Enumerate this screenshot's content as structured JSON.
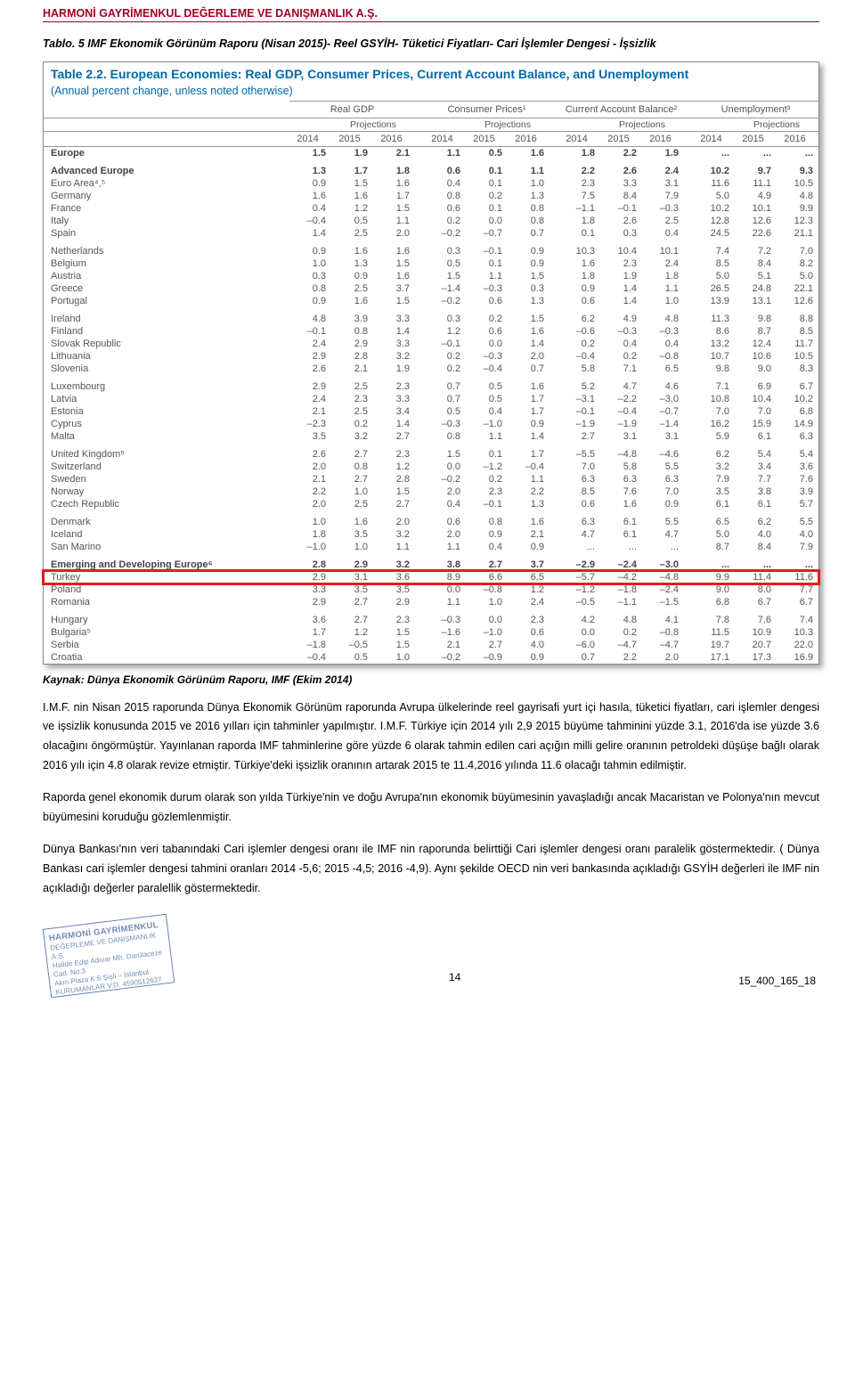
{
  "company_header": "HARMONİ GAYRİMENKUL DEĞERLEME VE DANIŞMANLIK A.Ş.",
  "caption": "Tablo. 5 IMF Ekonomik Görünüm Raporu (Nisan 2015)- Reel GSYİH- Tüketici Fiyatları- Cari İşlemler Dengesi - İşsizlik",
  "table": {
    "title": "Table 2.2. European Economies: Real GDP, Consumer Prices, Current Account Balance, and Unemployment",
    "subtitle": "(Annual percent change, unless noted otherwise)",
    "groups": [
      "Real GDP",
      "Consumer Prices¹",
      "Current Account Balance²",
      "Unemployment³"
    ],
    "proj_label": "Projections",
    "years": [
      "2014",
      "2015",
      "2016",
      "2014",
      "2015",
      "2016",
      "2014",
      "2015",
      "2016",
      "2014",
      "2015",
      "2016"
    ],
    "rows": [
      {
        "name": "Europe",
        "bold": true,
        "v": [
          "1.5",
          "1.9",
          "2.1",
          "1.1",
          "0.5",
          "1.6",
          "1.8",
          "2.2",
          "1.9",
          "...",
          "...",
          "..."
        ]
      },
      {
        "spacer": true
      },
      {
        "name": "Advanced Europe",
        "bold": true,
        "v": [
          "1.3",
          "1.7",
          "1.8",
          "0.6",
          "0.1",
          "1.1",
          "2.2",
          "2.6",
          "2.4",
          "10.2",
          "9.7",
          "9.3"
        ]
      },
      {
        "name": "Euro Area⁴,⁵",
        "v": [
          "0.9",
          "1.5",
          "1.6",
          "0.4",
          "0.1",
          "1.0",
          "2.3",
          "3.3",
          "3.1",
          "11.6",
          "11.1",
          "10.5"
        ]
      },
      {
        "name": "Germany",
        "v": [
          "1.6",
          "1.6",
          "1.7",
          "0.8",
          "0.2",
          "1.3",
          "7.5",
          "8.4",
          "7.9",
          "5.0",
          "4.9",
          "4.8"
        ]
      },
      {
        "name": "France",
        "v": [
          "0.4",
          "1.2",
          "1.5",
          "0.6",
          "0.1",
          "0.8",
          "–1.1",
          "–0.1",
          "–0.3",
          "10.2",
          "10.1",
          "9.9"
        ]
      },
      {
        "name": "Italy",
        "v": [
          "–0.4",
          "0.5",
          "1.1",
          "0.2",
          "0.0",
          "0.8",
          "1.8",
          "2.6",
          "2.5",
          "12.8",
          "12.6",
          "12.3"
        ]
      },
      {
        "name": "Spain",
        "v": [
          "1.4",
          "2.5",
          "2.0",
          "–0.2",
          "–0.7",
          "0.7",
          "0.1",
          "0.3",
          "0.4",
          "24.5",
          "22.6",
          "21.1"
        ]
      },
      {
        "spacer": true
      },
      {
        "name": "Netherlands",
        "v": [
          "0.9",
          "1.6",
          "1.6",
          "0.3",
          "–0.1",
          "0.9",
          "10.3",
          "10.4",
          "10.1",
          "7.4",
          "7.2",
          "7.0"
        ]
      },
      {
        "name": "Belgium",
        "v": [
          "1.0",
          "1.3",
          "1.5",
          "0.5",
          "0.1",
          "0.9",
          "1.6",
          "2.3",
          "2.4",
          "8.5",
          "8.4",
          "8.2"
        ]
      },
      {
        "name": "Austria",
        "v": [
          "0.3",
          "0.9",
          "1.6",
          "1.5",
          "1.1",
          "1.5",
          "1.8",
          "1.9",
          "1.8",
          "5.0",
          "5.1",
          "5.0"
        ]
      },
      {
        "name": "Greece",
        "v": [
          "0.8",
          "2.5",
          "3.7",
          "–1.4",
          "–0.3",
          "0.3",
          "0.9",
          "1.4",
          "1.1",
          "26.5",
          "24.8",
          "22.1"
        ]
      },
      {
        "name": "Portugal",
        "v": [
          "0.9",
          "1.6",
          "1.5",
          "–0.2",
          "0.6",
          "1.3",
          "0.6",
          "1.4",
          "1.0",
          "13.9",
          "13.1",
          "12.6"
        ]
      },
      {
        "spacer": true
      },
      {
        "name": "Ireland",
        "v": [
          "4.8",
          "3.9",
          "3.3",
          "0.3",
          "0.2",
          "1.5",
          "6.2",
          "4.9",
          "4.8",
          "11.3",
          "9.8",
          "8.8"
        ]
      },
      {
        "name": "Finland",
        "v": [
          "–0.1",
          "0.8",
          "1.4",
          "1.2",
          "0.6",
          "1.6",
          "–0.6",
          "–0.3",
          "–0.3",
          "8.6",
          "8.7",
          "8.5"
        ]
      },
      {
        "name": "Slovak Republic",
        "v": [
          "2.4",
          "2.9",
          "3.3",
          "–0.1",
          "0.0",
          "1.4",
          "0.2",
          "0.4",
          "0.4",
          "13.2",
          "12.4",
          "11.7"
        ]
      },
      {
        "name": "Lithuania",
        "v": [
          "2.9",
          "2.8",
          "3.2",
          "0.2",
          "–0.3",
          "2.0",
          "–0.4",
          "0.2",
          "–0.8",
          "10.7",
          "10.6",
          "10.5"
        ]
      },
      {
        "name": "Slovenia",
        "v": [
          "2.6",
          "2.1",
          "1.9",
          "0.2",
          "–0.4",
          "0.7",
          "5.8",
          "7.1",
          "6.5",
          "9.8",
          "9.0",
          "8.3"
        ]
      },
      {
        "spacer": true
      },
      {
        "name": "Luxembourg",
        "v": [
          "2.9",
          "2.5",
          "2.3",
          "0.7",
          "0.5",
          "1.6",
          "5.2",
          "4.7",
          "4.6",
          "7.1",
          "6.9",
          "6.7"
        ]
      },
      {
        "name": "Latvia",
        "v": [
          "2.4",
          "2.3",
          "3.3",
          "0.7",
          "0.5",
          "1.7",
          "–3.1",
          "–2.2",
          "–3.0",
          "10.8",
          "10.4",
          "10.2"
        ]
      },
      {
        "name": "Estonia",
        "v": [
          "2.1",
          "2.5",
          "3.4",
          "0.5",
          "0.4",
          "1.7",
          "–0.1",
          "–0.4",
          "–0.7",
          "7.0",
          "7.0",
          "6.8"
        ]
      },
      {
        "name": "Cyprus",
        "v": [
          "–2.3",
          "0.2",
          "1.4",
          "–0.3",
          "–1.0",
          "0.9",
          "–1.9",
          "–1.9",
          "–1.4",
          "16.2",
          "15.9",
          "14.9"
        ]
      },
      {
        "name": "Malta",
        "v": [
          "3.5",
          "3.2",
          "2.7",
          "0.8",
          "1.1",
          "1.4",
          "2.7",
          "3.1",
          "3.1",
          "5.9",
          "6.1",
          "6.3"
        ]
      },
      {
        "spacer": true
      },
      {
        "name": "United Kingdom⁵",
        "v": [
          "2.6",
          "2.7",
          "2.3",
          "1.5",
          "0.1",
          "1.7",
          "–5.5",
          "–4.8",
          "–4.6",
          "6.2",
          "5.4",
          "5.4"
        ]
      },
      {
        "name": "Switzerland",
        "v": [
          "2.0",
          "0.8",
          "1.2",
          "0.0",
          "–1.2",
          "–0.4",
          "7.0",
          "5.8",
          "5.5",
          "3.2",
          "3.4",
          "3.6"
        ]
      },
      {
        "name": "Sweden",
        "v": [
          "2.1",
          "2.7",
          "2.8",
          "–0.2",
          "0.2",
          "1.1",
          "6.3",
          "6.3",
          "6.3",
          "7.9",
          "7.7",
          "7.6"
        ]
      },
      {
        "name": "Norway",
        "v": [
          "2.2",
          "1.0",
          "1.5",
          "2.0",
          "2.3",
          "2.2",
          "8.5",
          "7.6",
          "7.0",
          "3.5",
          "3.8",
          "3.9"
        ]
      },
      {
        "name": "Czech Republic",
        "v": [
          "2.0",
          "2.5",
          "2.7",
          "0.4",
          "–0.1",
          "1.3",
          "0.6",
          "1.6",
          "0.9",
          "6.1",
          "6.1",
          "5.7"
        ]
      },
      {
        "spacer": true
      },
      {
        "name": "Denmark",
        "v": [
          "1.0",
          "1.6",
          "2.0",
          "0.6",
          "0.8",
          "1.6",
          "6.3",
          "6.1",
          "5.5",
          "6.5",
          "6.2",
          "5.5"
        ]
      },
      {
        "name": "Iceland",
        "v": [
          "1.8",
          "3.5",
          "3.2",
          "2.0",
          "0.9",
          "2.1",
          "4.7",
          "6.1",
          "4.7",
          "5.0",
          "4.0",
          "4.0"
        ]
      },
      {
        "name": "San Marino",
        "v": [
          "–1.0",
          "1.0",
          "1.1",
          "1.1",
          "0.4",
          "0.9",
          "...",
          "...",
          "...",
          "8.7",
          "8.4",
          "7.9"
        ]
      },
      {
        "spacer": true
      },
      {
        "name": "Emerging and Developing Europe⁶",
        "bold": true,
        "v": [
          "2.8",
          "2.9",
          "3.2",
          "3.8",
          "2.7",
          "3.7",
          "–2.9",
          "–2.4",
          "–3.0",
          "...",
          "...",
          "..."
        ]
      },
      {
        "name": "Turkey",
        "highlight": true,
        "v": [
          "2.9",
          "3.1",
          "3.6",
          "8.9",
          "6.6",
          "6.5",
          "–5.7",
          "–4.2",
          "–4.8",
          "9.9",
          "11.4",
          "11.6"
        ]
      },
      {
        "name": "Poland",
        "v": [
          "3.3",
          "3.5",
          "3.5",
          "0.0",
          "–0.8",
          "1.2",
          "–1.2",
          "–1.8",
          "–2.4",
          "9.0",
          "8.0",
          "7.7"
        ]
      },
      {
        "name": "Romania",
        "v": [
          "2.9",
          "2.7",
          "2.9",
          "1.1",
          "1.0",
          "2.4",
          "–0.5",
          "–1.1",
          "–1.5",
          "6.8",
          "6.7",
          "6.7"
        ]
      },
      {
        "spacer": true
      },
      {
        "name": "Hungary",
        "v": [
          "3.6",
          "2.7",
          "2.3",
          "–0.3",
          "0.0",
          "2.3",
          "4.2",
          "4.8",
          "4.1",
          "7.8",
          "7.6",
          "7.4"
        ]
      },
      {
        "name": "Bulgaria⁵",
        "v": [
          "1.7",
          "1.2",
          "1.5",
          "–1.6",
          "–1.0",
          "0.6",
          "0.0",
          "0.2",
          "–0.8",
          "11.5",
          "10.9",
          "10.3"
        ]
      },
      {
        "name": "Serbia",
        "v": [
          "–1.8",
          "–0.5",
          "1.5",
          "2.1",
          "2.7",
          "4.0",
          "–6.0",
          "–4.7",
          "–4.7",
          "19.7",
          "20.7",
          "22.0"
        ]
      },
      {
        "name": "Croatia",
        "v": [
          "–0.4",
          "0.5",
          "1.0",
          "–0.2",
          "–0.9",
          "0.9",
          "0.7",
          "2.2",
          "2.0",
          "17.1",
          "17.3",
          "16.9"
        ]
      }
    ]
  },
  "source": "Kaynak: Dünya Ekonomik Görünüm Raporu, IMF (Ekim 2014)",
  "para1": "I.M.F. nin Nisan 2015 raporunda Dünya Ekonomik Görünüm raporunda Avrupa ülkelerinde reel gayrisafi yurt içi hasıla, tüketici fiyatları, cari işlemler dengesi ve işsizlik konusunda 2015 ve 2016 yılları için tahminler yapılmıştır. I.M.F. Türkiye için 2014 yılı 2,9 2015 büyüme tahminini yüzde 3.1, 2016'da ise yüzde 3.6 olacağını öngörmüştür. Yayınlanan raporda IMF tahminlerine göre yüzde 6 olarak tahmin edilen cari açığın milli gelire oranının petroldeki düşüşe bağlı olarak 2016 yılı için 4.8 olarak revize etmiştir. Türkiye'deki işsizlik oranının artarak 2015 te 11.4,2016 yılında 11.6 olacağı tahmin edilmiştir.",
  "para2": "Raporda genel ekonomik durum olarak son yılda Türkiye'nin ve doğu Avrupa'nın ekonomik büyümesinin yavaşladığı ancak Macaristan ve Polonya'nın mevcut büyümesini koruduğu gözlemlenmiştir.",
  "para3": "Dünya Bankası'nın veri tabanındaki Cari işlemler dengesi oranı ile IMF nin raporunda belirttiği Cari işlemler dengesi oranı paralelik göstermektedir. ( Dünya Bankası cari işlemler dengesi tahmini oranları 2014 -5,6; 2015 -4,5; 2016 -4,9). Aynı şekilde OECD nin veri bankasında açıkladığı GSYİH değerleri ile IMF nin açıkladığı değerler paralellik göstermektedir.",
  "stamp": {
    "title": "HARMONİ GAYRİMENKUL",
    "line2": "DEĞERLEME VE DANIŞMANLIK A.Ş.",
    "line3": "Halide Edip Adıvar Mh. Darülaceze Cad. No:3",
    "line4": "Akın Plaza K:6 Şişli – İstanbul",
    "line5": "KURUMANLAR V.D. 4590512637"
  },
  "page_number": "14",
  "doc_id": "15_400_165_18"
}
